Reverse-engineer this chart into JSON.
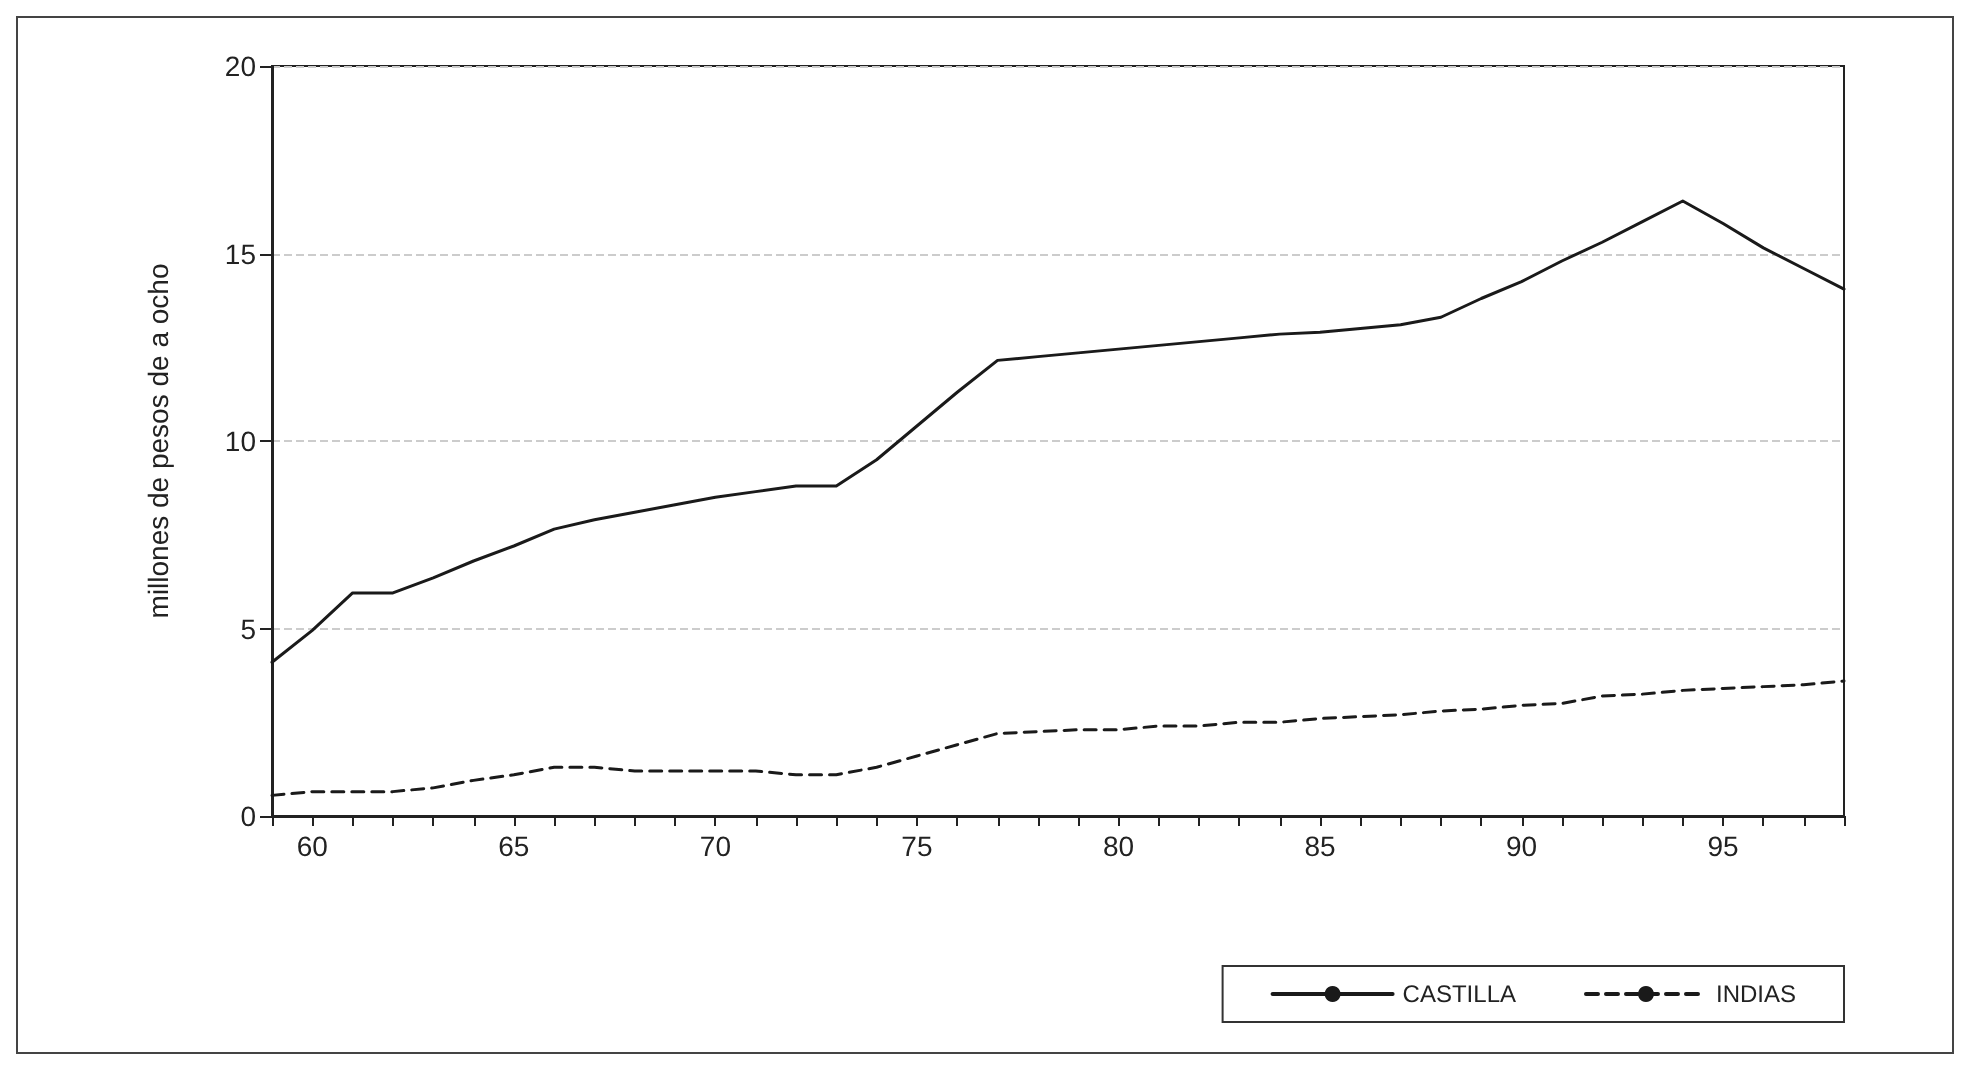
{
  "chart_data": {
    "type": "line",
    "ylabel": "millones de pesos de a ocho",
    "x": [
      59,
      60,
      61,
      62,
      63,
      64,
      65,
      66,
      67,
      68,
      69,
      70,
      71,
      72,
      73,
      74,
      75,
      76,
      77,
      78,
      79,
      80,
      81,
      82,
      83,
      84,
      85,
      86,
      87,
      88,
      89,
      90,
      91,
      92,
      93,
      94,
      95,
      96,
      97,
      98
    ],
    "series": [
      {
        "name": "CASTILLA",
        "color": "#1a1a1a",
        "line_style": "solid",
        "values": [
          4.1,
          4.95,
          5.95,
          5.95,
          6.35,
          6.8,
          7.2,
          7.65,
          7.9,
          8.1,
          8.3,
          8.5,
          8.65,
          8.8,
          8.8,
          9.5,
          10.4,
          11.3,
          12.15,
          12.25,
          12.35,
          12.45,
          12.55,
          12.65,
          12.75,
          12.85,
          12.9,
          13.0,
          13.1,
          13.3,
          13.8,
          14.25,
          14.8,
          15.3,
          15.85,
          16.4,
          15.8,
          15.15,
          14.6,
          14.05
        ]
      },
      {
        "name": "INDIAS",
        "color": "#1a1a1a",
        "line_style": "dashed",
        "values": [
          0.55,
          0.65,
          0.65,
          0.65,
          0.75,
          0.95,
          1.1,
          1.3,
          1.3,
          1.2,
          1.2,
          1.2,
          1.2,
          1.1,
          1.1,
          1.3,
          1.6,
          1.9,
          2.2,
          2.25,
          2.3,
          2.3,
          2.4,
          2.4,
          2.5,
          2.5,
          2.6,
          2.65,
          2.7,
          2.8,
          2.85,
          2.95,
          3.0,
          3.2,
          3.25,
          3.35,
          3.4,
          3.45,
          3.5,
          3.6
        ]
      }
    ],
    "xlim": [
      59,
      98
    ],
    "xticks": [
      {
        "value": 59,
        "label": null
      },
      60,
      {
        "value": 61,
        "label": null
      },
      {
        "value": 62,
        "label": null
      },
      {
        "value": 63,
        "label": null
      },
      {
        "value": 64,
        "label": null
      },
      65,
      {
        "value": 66,
        "label": null
      },
      {
        "value": 67,
        "label": null
      },
      {
        "value": 68,
        "label": null
      },
      {
        "value": 69,
        "label": null
      },
      70,
      {
        "value": 71,
        "label": null
      },
      {
        "value": 72,
        "label": null
      },
      {
        "value": 73,
        "label": null
      },
      {
        "value": 74,
        "label": null
      },
      75,
      {
        "value": 76,
        "label": null
      },
      {
        "value": 77,
        "label": null
      },
      {
        "value": 78,
        "label": null
      },
      {
        "value": 79,
        "label": null
      },
      80,
      {
        "value": 81,
        "label": null
      },
      {
        "value": 82,
        "label": null
      },
      {
        "value": 83,
        "label": null
      },
      {
        "value": 84,
        "label": null
      },
      85,
      {
        "value": 86,
        "label": null
      },
      {
        "value": 87,
        "label": null
      },
      {
        "value": 88,
        "label": null
      },
      {
        "value": 89,
        "label": null
      },
      90,
      {
        "value": 91,
        "label": null
      },
      {
        "value": 92,
        "label": null
      },
      {
        "value": 93,
        "label": null
      },
      {
        "value": 94,
        "label": null
      },
      95,
      {
        "value": 96,
        "label": null
      },
      {
        "value": 97,
        "label": null
      },
      {
        "value": 98,
        "label": null
      }
    ],
    "ylim": [
      0,
      20
    ],
    "yticks": [
      0,
      5,
      10,
      15,
      20
    ],
    "grid": "y",
    "legend": "bottom right",
    "marker": "none"
  }
}
